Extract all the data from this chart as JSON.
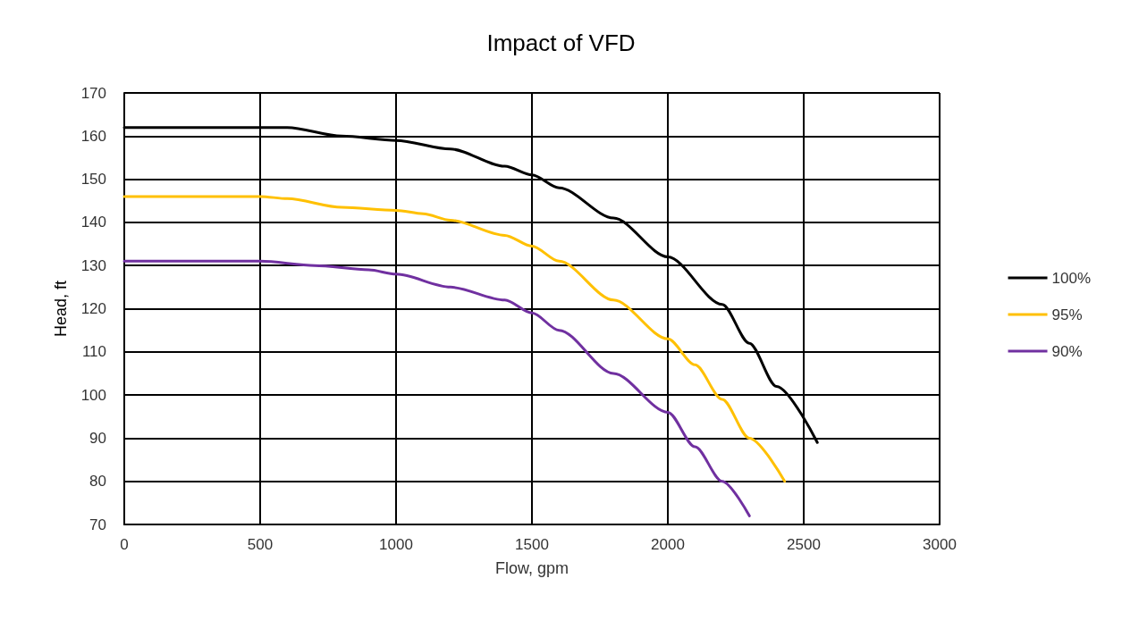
{
  "chart_data": {
    "type": "line",
    "title": "Impact of VFD",
    "xlabel": "Flow, gpm",
    "ylabel": "Head, ft",
    "xlim": [
      0,
      3000
    ],
    "xticks": [
      0,
      500,
      1000,
      1500,
      2000,
      2500,
      3000
    ],
    "ylim": [
      70,
      170
    ],
    "yticks": [
      70,
      80,
      90,
      100,
      110,
      120,
      130,
      140,
      150,
      160,
      170
    ],
    "grid": true,
    "legend": "right",
    "marker": "none",
    "line_style": "solid",
    "series": [
      {
        "name": "100%",
        "color": "#000000",
        "x": [
          0,
          400,
          500,
          600,
          800,
          1000,
          1200,
          1400,
          1500,
          1600,
          1800,
          2000,
          2200,
          2300,
          2400,
          2550
        ],
        "values": [
          162,
          162,
          162,
          162,
          160,
          159,
          157,
          153,
          151,
          148,
          141,
          132,
          121,
          112,
          102,
          89
        ]
      },
      {
        "name": "95%",
        "color": "#ffc000",
        "x": [
          0,
          500,
          600,
          800,
          1000,
          1100,
          1200,
          1400,
          1500,
          1600,
          1800,
          2000,
          2100,
          2200,
          2300,
          2430
        ],
        "values": [
          146,
          146,
          145.5,
          143.5,
          142.8,
          142,
          140.5,
          137,
          134.5,
          131,
          122,
          113,
          107,
          99,
          90,
          80
        ]
      },
      {
        "name": "90%",
        "color": "#7030a0",
        "x": [
          0,
          500,
          700,
          900,
          1000,
          1200,
          1400,
          1500,
          1600,
          1800,
          2000,
          2100,
          2200,
          2300
        ],
        "values": [
          131,
          131,
          130,
          129,
          128,
          125,
          122,
          119,
          115,
          105,
          96,
          88,
          80,
          72
        ]
      }
    ]
  }
}
